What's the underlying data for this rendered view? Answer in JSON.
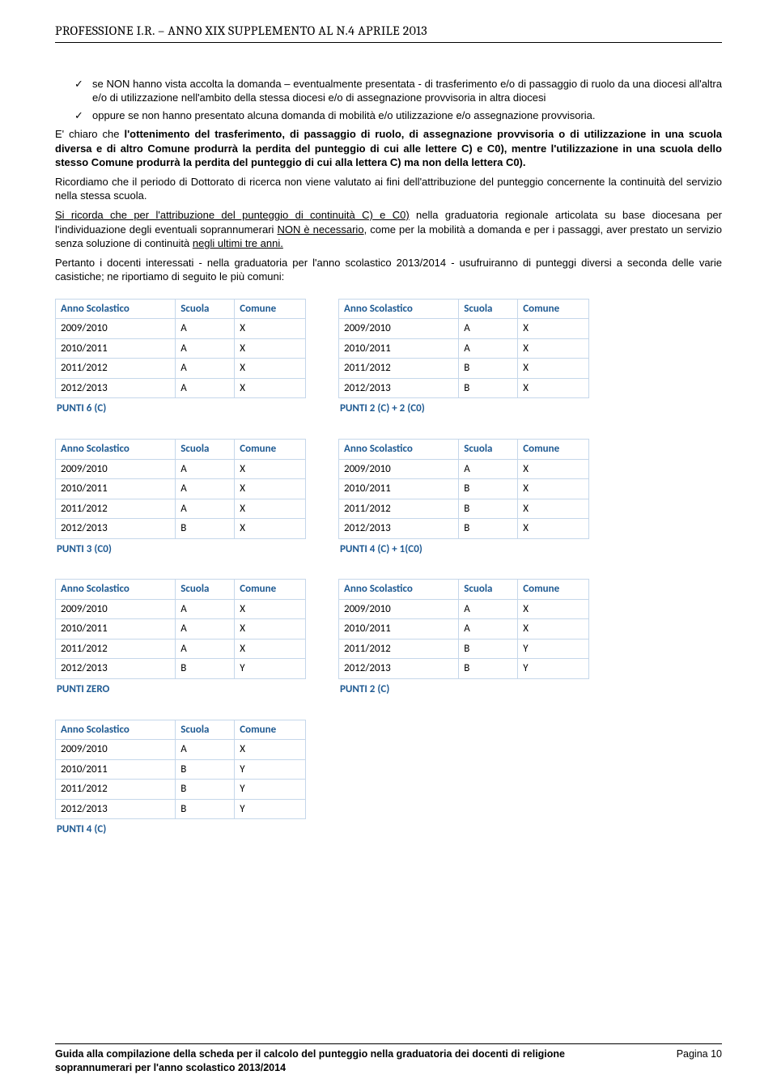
{
  "header": "PROFESSIONE I.R. – ANNO XIX SUPPLEMENTO AL N.4 APRILE 2013",
  "bullets": [
    "se NON hanno vista accolta la domanda – eventualmente presentata - di trasferimento e/o di passaggio di ruolo da una diocesi all'altra e/o di utilizzazione nell'ambito della stessa diocesi e/o di assegnazione provvisoria in altra diocesi",
    "oppure se non hanno presentato alcuna domanda di mobilità e/o utilizzazione e/o assegnazione provvisoria."
  ],
  "para1_a": "E' chiaro che ",
  "para1_b": "l'ottenimento del trasferimento, di passaggio di ruolo, di assegnazione provvisoria o di utilizzazione in una scuola diversa e di altro Comune produrrà la perdita del punteggio di cui alle lettere C) e C0), mentre l'utilizzazione in una scuola dello stesso Comune produrrà la perdita del punteggio di cui alla lettera C) ma non della lettera C0).",
  "para2": "Ricordiamo che il periodo di Dottorato di ricerca non viene valutato ai fini dell'attribuzione del punteggio concernente la continuità del servizio nella stessa scuola.",
  "para3_a": "Si ricorda che per l'attribuzione del punteggio di continuità C) e C0)",
  "para3_b": " nella graduatoria regionale articolata su base diocesana per l'individuazione degli eventuali soprannumerari ",
  "para3_c": "NON è necessario",
  "para3_d": ", come per la mobilità a domanda e per i passaggi, aver prestato un servizio senza soluzione di continuità ",
  "para3_e": "negli ultimi tre anni.",
  "para4": "Pertanto i docenti interessati - nella graduatoria per l'anno scolastico 2013/2014 - usufruiranno di punteggi diversi a seconda delle varie casistiche; ne riportiamo di seguito le più comuni:",
  "col_labels": {
    "anno": "Anno Scolastico",
    "scuola": "Scuola",
    "comune": "Comune"
  },
  "tables": [
    [
      {
        "rows": [
          [
            "2009/2010",
            "A",
            "X"
          ],
          [
            "2010/2011",
            "A",
            "X"
          ],
          [
            "2011/2012",
            "A",
            "X"
          ],
          [
            "2012/2013",
            "A",
            "X"
          ]
        ],
        "punti": "PUNTI 6 (C)"
      },
      {
        "rows": [
          [
            "2009/2010",
            "A",
            "X"
          ],
          [
            "2010/2011",
            "A",
            "X"
          ],
          [
            "2011/2012",
            "B",
            "X"
          ],
          [
            "2012/2013",
            "B",
            "X"
          ]
        ],
        "punti": "PUNTI 2 (C) + 2 (C0)"
      }
    ],
    [
      {
        "rows": [
          [
            "2009/2010",
            "A",
            "X"
          ],
          [
            "2010/2011",
            "A",
            "X"
          ],
          [
            "2011/2012",
            "A",
            "X"
          ],
          [
            "2012/2013",
            "B",
            "X"
          ]
        ],
        "punti": "PUNTI 3 (C0)"
      },
      {
        "rows": [
          [
            "2009/2010",
            "A",
            "X"
          ],
          [
            "2010/2011",
            "B",
            "X"
          ],
          [
            "2011/2012",
            "B",
            "X"
          ],
          [
            "2012/2013",
            "B",
            "X"
          ]
        ],
        "punti": "PUNTI 4 (C) + 1(C0)"
      }
    ],
    [
      {
        "rows": [
          [
            "2009/2010",
            "A",
            "X"
          ],
          [
            "2010/2011",
            "A",
            "X"
          ],
          [
            "2011/2012",
            "A",
            "X"
          ],
          [
            "2012/2013",
            "B",
            "Y"
          ]
        ],
        "punti": "PUNTI ZERO"
      },
      {
        "rows": [
          [
            "2009/2010",
            "A",
            "X"
          ],
          [
            "2010/2011",
            "A",
            "X"
          ],
          [
            "2011/2012",
            "B",
            "Y"
          ],
          [
            "2012/2013",
            "B",
            "Y"
          ]
        ],
        "punti": "PUNTI 2 (C)"
      }
    ],
    [
      {
        "rows": [
          [
            "2009/2010",
            "A",
            "X"
          ],
          [
            "2010/2011",
            "B",
            "Y"
          ],
          [
            "2011/2012",
            "B",
            "Y"
          ],
          [
            "2012/2013",
            "B",
            "Y"
          ]
        ],
        "punti": "PUNTI 4 (C)"
      }
    ]
  ],
  "footer_title": "Guida alla compilazione della scheda per il calcolo del punteggio nella graduatoria dei docenti di religione soprannumerari per l'anno scolastico 2013/2014",
  "footer_page": "Pagina 10"
}
